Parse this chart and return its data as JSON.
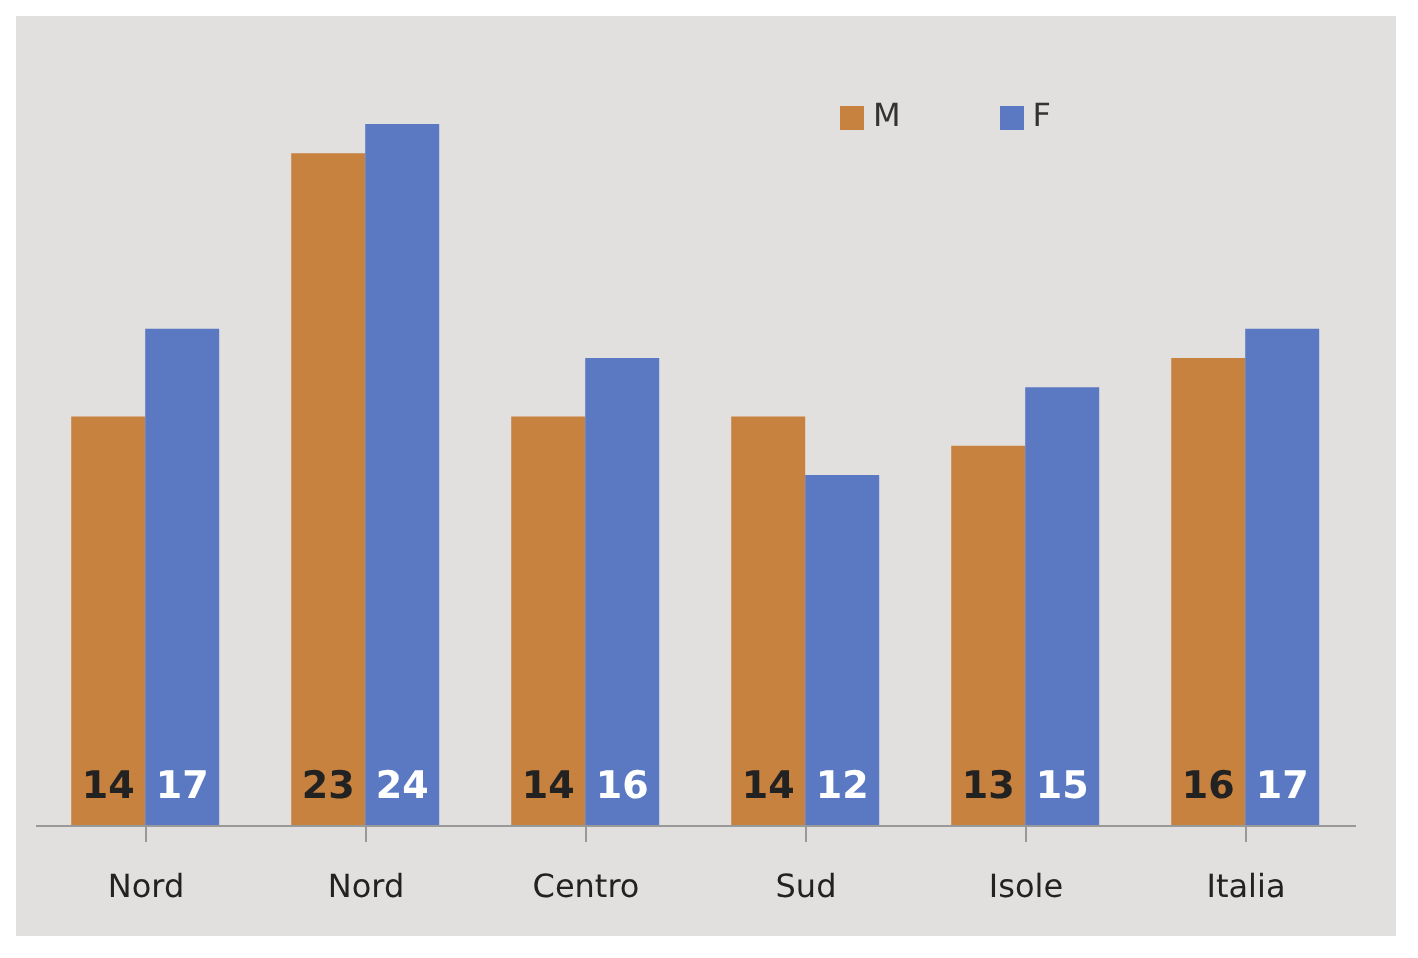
{
  "chart_data": {
    "type": "bar",
    "categories": [
      "Nord",
      "Nord",
      "Centro",
      "Sud",
      "Isole",
      "Italia"
    ],
    "series": [
      {
        "name": "M",
        "color": "#c8823f",
        "values": [
          14,
          23,
          14,
          14,
          13,
          16
        ]
      },
      {
        "name": "F",
        "color": "#5b79c2",
        "values": [
          17,
          24,
          16,
          12,
          15,
          17
        ]
      }
    ],
    "data_labels": true,
    "legend": "top",
    "grid": false
  }
}
